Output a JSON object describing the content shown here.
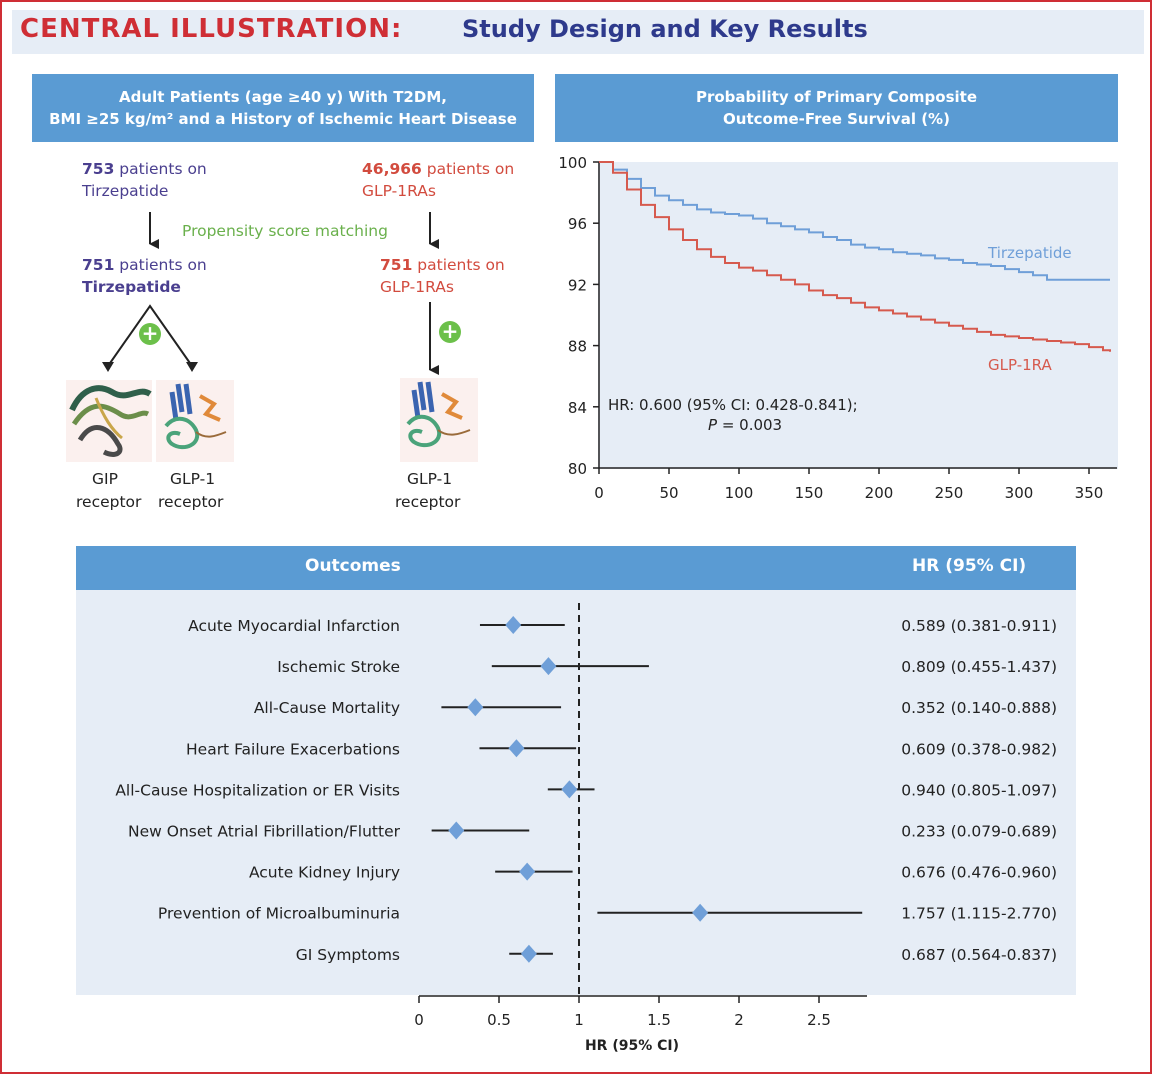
{
  "header": {
    "title_main": "CENTRAL ILLUSTRATION:",
    "title_sub": "Study Design and Key Results"
  },
  "study_design": {
    "header_line1": "Adult Patients (age ≥40 y) With T2DM,",
    "header_line2": "BMI ≥25 kg/m² and a History of Ischemic Heart Disease",
    "tirz_before_count": "753",
    "tirz_before_suffix": " patients on",
    "tirz_before_drug": "Tirzepatide",
    "glp_before_count": "46,966",
    "glp_before_suffix": " patients on",
    "glp_before_drug": "GLP-1RAs",
    "matching_label": "Propensity score matching",
    "tirz_after_count": "751",
    "tirz_after_suffix": " patients on",
    "tirz_after_drug": "Tirzepatide",
    "glp_after_count": "751",
    "glp_after_suffix": " patients on",
    "glp_after_drug": "GLP-1RAs",
    "receptor_gip_line1": "GIP",
    "receptor_gip_line2": "receptor",
    "receptor_glp1_line1": "GLP-1",
    "receptor_glp1_line2": "receptor",
    "receptor_glp1b_line1": "GLP-1",
    "receptor_glp1b_line2": "receptor",
    "plus_symbol": "+"
  },
  "km_panel": {
    "header_line1": "Probability of Primary Composite",
    "header_line2": "Outcome-Free Survival (%)"
  },
  "chart_data": [
    {
      "type": "line",
      "title": "Probability of Primary Composite Outcome-Free Survival (%)",
      "xlabel": "",
      "ylabel": "",
      "xlim": [
        0,
        370
      ],
      "ylim": [
        80,
        100
      ],
      "x_ticks": [
        0,
        50,
        100,
        150,
        200,
        250,
        300,
        350
      ],
      "y_ticks": [
        80,
        84,
        88,
        92,
        96,
        100
      ],
      "grid": false,
      "series": [
        {
          "name": "Tirzepatide",
          "color": "#6f9fd8",
          "x": [
            0,
            10,
            20,
            30,
            40,
            50,
            60,
            70,
            80,
            90,
            100,
            110,
            120,
            130,
            140,
            150,
            160,
            170,
            180,
            190,
            200,
            210,
            220,
            230,
            240,
            250,
            260,
            270,
            280,
            290,
            300,
            310,
            320,
            330,
            340,
            350,
            365
          ],
          "y": [
            100,
            99.5,
            98.9,
            98.3,
            97.8,
            97.5,
            97.2,
            96.9,
            96.7,
            96.6,
            96.5,
            96.3,
            96.0,
            95.8,
            95.6,
            95.4,
            95.1,
            94.9,
            94.6,
            94.4,
            94.3,
            94.1,
            94.0,
            93.9,
            93.7,
            93.6,
            93.4,
            93.3,
            93.2,
            93.0,
            92.8,
            92.6,
            92.3,
            92.3,
            92.3,
            92.3,
            92.3
          ]
        },
        {
          "name": "GLP-1RA",
          "color": "#d65a4e",
          "x": [
            0,
            10,
            20,
            30,
            40,
            50,
            60,
            70,
            80,
            90,
            100,
            110,
            120,
            130,
            140,
            150,
            160,
            170,
            180,
            190,
            200,
            210,
            220,
            230,
            240,
            250,
            260,
            270,
            280,
            290,
            300,
            310,
            320,
            330,
            340,
            350,
            360,
            365
          ],
          "y": [
            100,
            99.3,
            98.2,
            97.2,
            96.4,
            95.6,
            94.9,
            94.3,
            93.8,
            93.4,
            93.1,
            92.9,
            92.6,
            92.3,
            92.0,
            91.6,
            91.3,
            91.1,
            90.8,
            90.5,
            90.3,
            90.1,
            89.9,
            89.7,
            89.5,
            89.3,
            89.1,
            88.9,
            88.7,
            88.6,
            88.5,
            88.4,
            88.3,
            88.2,
            88.1,
            87.9,
            87.7,
            87.6
          ]
        }
      ],
      "annotation_hr": "HR: 0.600 (95% CI: 0.428-0.841);",
      "annotation_p_label": "P",
      "annotation_p_value": " = 0.003"
    },
    {
      "type": "forest",
      "title": "",
      "header_left": "Outcomes",
      "header_right": "HR (95% CI)",
      "xlabel": "HR (95% CI)",
      "xlim": [
        0,
        2.8
      ],
      "x_ticks": [
        "0",
        "0.5",
        "1",
        "1.5",
        "2",
        "2.5"
      ],
      "reference_line": 1,
      "marker_color": "#6f9fd8",
      "rows": [
        {
          "outcome": "Acute Myocardial Infarction",
          "hr": 0.589,
          "lo": 0.381,
          "hi": 0.911,
          "label": "0.589 (0.381-0.911)"
        },
        {
          "outcome": "Ischemic Stroke",
          "hr": 0.809,
          "lo": 0.455,
          "hi": 1.437,
          "label": "0.809 (0.455-1.437)"
        },
        {
          "outcome": "All-Cause Mortality",
          "hr": 0.352,
          "lo": 0.14,
          "hi": 0.888,
          "label": "0.352 (0.140-0.888)"
        },
        {
          "outcome": "Heart Failure Exacerbations",
          "hr": 0.609,
          "lo": 0.378,
          "hi": 0.982,
          "label": "0.609 (0.378-0.982)"
        },
        {
          "outcome": "All-Cause Hospitalization or ER Visits",
          "hr": 0.94,
          "lo": 0.805,
          "hi": 1.097,
          "label": "0.940 (0.805-1.097)"
        },
        {
          "outcome": "New Onset Atrial Fibrillation/Flutter",
          "hr": 0.233,
          "lo": 0.079,
          "hi": 0.689,
          "label": "0.233 (0.079-0.689)"
        },
        {
          "outcome": "Acute Kidney Injury",
          "hr": 0.676,
          "lo": 0.476,
          "hi": 0.96,
          "label": "0.676 (0.476-0.960)"
        },
        {
          "outcome": "Prevention of Microalbuminuria",
          "hr": 1.757,
          "lo": 1.115,
          "hi": 2.77,
          "label": "1.757 (1.115-2.770)"
        },
        {
          "outcome": "GI Symptoms",
          "hr": 0.687,
          "lo": 0.564,
          "hi": 0.837,
          "label": "0.687 (0.564-0.837)"
        }
      ]
    }
  ]
}
